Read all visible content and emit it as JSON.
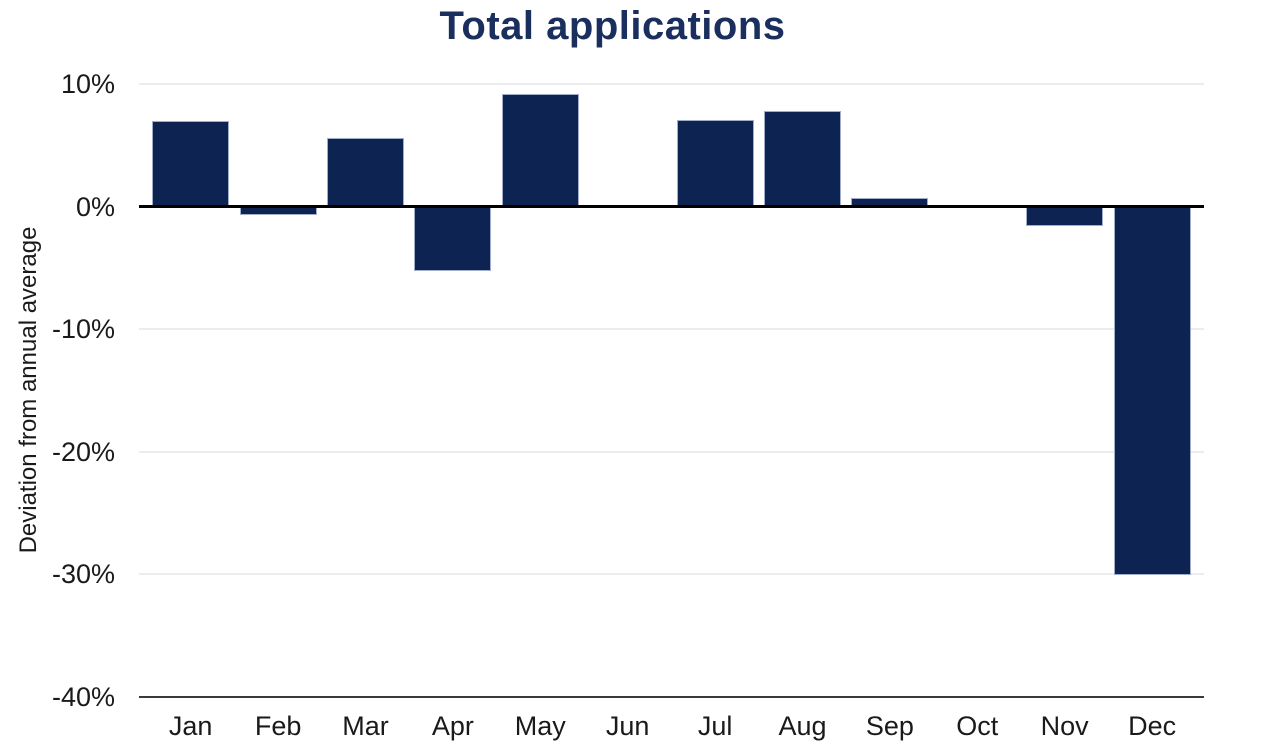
{
  "chart_data": {
    "type": "bar",
    "title": "Total applications",
    "xlabel": "",
    "ylabel": "Deviation from annual average",
    "categories": [
      "Jan",
      "Feb",
      "Mar",
      "Apr",
      "May",
      "Jun",
      "Jul",
      "Aug",
      "Sep",
      "Oct",
      "Nov",
      "Dec"
    ],
    "values": [
      7.0,
      -0.7,
      5.6,
      -5.3,
      9.2,
      0,
      7.1,
      7.8,
      0.7,
      0,
      -1.6,
      -30.1
    ],
    "unit": "%",
    "ylim": [
      -40,
      10
    ],
    "y_ticks": {
      "values": [
        10,
        0,
        -10,
        -20,
        -30,
        -40
      ],
      "labels": [
        "10%",
        "0%",
        "-10%",
        "-20%",
        "-30%",
        "-40%"
      ]
    },
    "grid": "horizontal-light",
    "legend": "none",
    "colors": {
      "bar": "#0d2452",
      "bar_border": "#9faccb",
      "title": "#1b2f5e",
      "tick_label": "#1a1a1a",
      "gridline": "#ececec",
      "zero_line": "#000000",
      "axis_line": "#3a3a3a",
      "background": "#ffffff"
    }
  }
}
